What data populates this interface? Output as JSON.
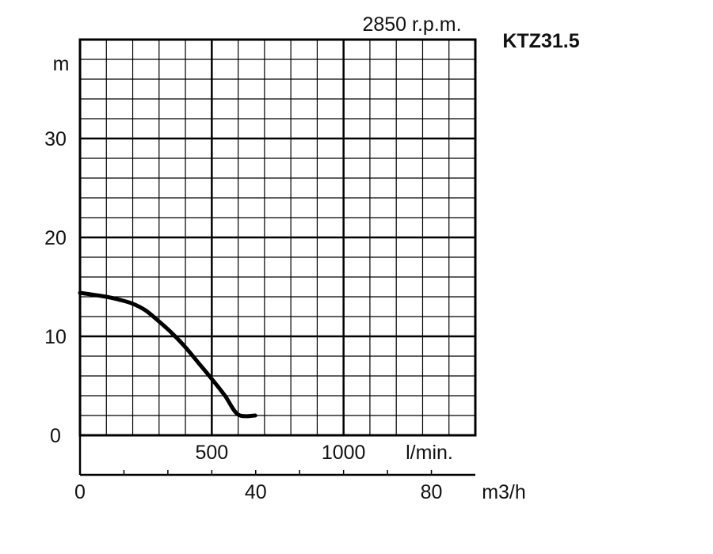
{
  "chart_data": {
    "type": "line",
    "rpm_label": "2850 r.p.m.",
    "model": "KTZ31.5",
    "ylabel": "m",
    "ylim": [
      0,
      40
    ],
    "yticks": [
      "0",
      "10",
      "20",
      "30"
    ],
    "x_lmin_ticks": [
      "500",
      "1000"
    ],
    "x_lmin_label": "l/min.",
    "x_lmin_range": [
      0,
      1500
    ],
    "x_m3h_ticks": [
      "0",
      "40",
      "80"
    ],
    "x_m3h_label": "m3/h",
    "x_m3h_range": [
      0,
      90
    ],
    "grid": true,
    "series": [
      {
        "x_lmin": [
          0,
          100,
          150,
          200,
          250,
          300,
          350,
          400,
          450,
          500,
          550,
          600,
          665
        ],
        "y": [
          14.4,
          14.0,
          13.7,
          13.3,
          12.6,
          11.5,
          10.3,
          8.9,
          7.3,
          5.7,
          4.0,
          2.1,
          2.0
        ]
      }
    ]
  }
}
